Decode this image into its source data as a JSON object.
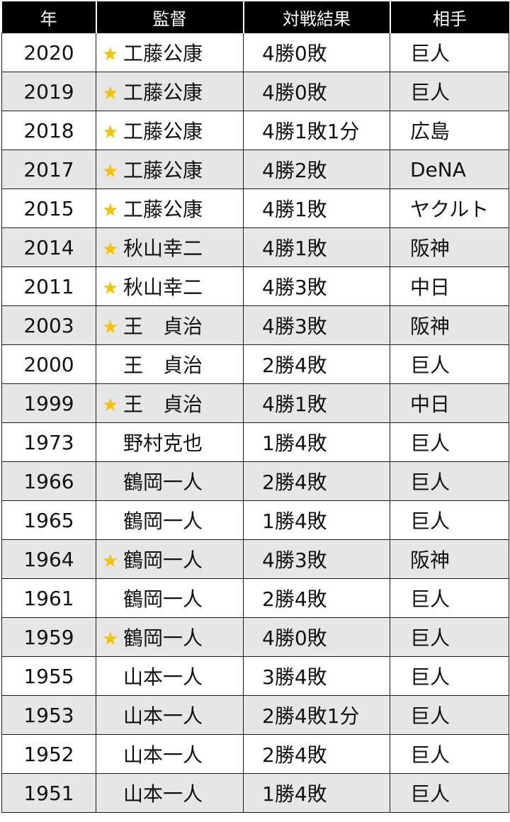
{
  "headers": {
    "year": "年",
    "manager": "監督",
    "result": "対戦結果",
    "opponent": "相手"
  },
  "colors": {
    "header_bg": "#000000",
    "alt_row_bg": "#e6e6e6",
    "star": "#f5c200"
  },
  "rows": [
    {
      "year": "2020",
      "star": "★",
      "manager": "工藤公康",
      "result": "4勝0敗",
      "opponent": "巨人"
    },
    {
      "year": "2019",
      "star": "★",
      "manager": "工藤公康",
      "result": "4勝0敗",
      "opponent": "巨人"
    },
    {
      "year": "2018",
      "star": "★",
      "manager": "工藤公康",
      "result": "4勝1敗1分",
      "opponent": "広島"
    },
    {
      "year": "2017",
      "star": "★",
      "manager": "工藤公康",
      "result": "4勝2敗",
      "opponent": "DeNA"
    },
    {
      "year": "2015",
      "star": "★",
      "manager": "工藤公康",
      "result": "4勝1敗",
      "opponent": "ヤクルト"
    },
    {
      "year": "2014",
      "star": "★",
      "manager": "秋山幸二",
      "result": "4勝1敗",
      "opponent": "阪神"
    },
    {
      "year": "2011",
      "star": "★",
      "manager": "秋山幸二",
      "result": "4勝3敗",
      "opponent": "中日"
    },
    {
      "year": "2003",
      "star": "★",
      "manager": "王　貞治",
      "result": "4勝3敗",
      "opponent": "阪神"
    },
    {
      "year": "2000",
      "star": "",
      "manager": "王　貞治",
      "result": "2勝4敗",
      "opponent": "巨人"
    },
    {
      "year": "1999",
      "star": "★",
      "manager": "王　貞治",
      "result": "4勝1敗",
      "opponent": "中日"
    },
    {
      "year": "1973",
      "star": "",
      "manager": "野村克也",
      "result": "1勝4敗",
      "opponent": "巨人"
    },
    {
      "year": "1966",
      "star": "",
      "manager": "鶴岡一人",
      "result": "2勝4敗",
      "opponent": "巨人"
    },
    {
      "year": "1965",
      "star": "",
      "manager": "鶴岡一人",
      "result": "1勝4敗",
      "opponent": "巨人"
    },
    {
      "year": "1964",
      "star": "★",
      "manager": "鶴岡一人",
      "result": "4勝3敗",
      "opponent": "阪神"
    },
    {
      "year": "1961",
      "star": "",
      "manager": "鶴岡一人",
      "result": "2勝4敗",
      "opponent": "巨人"
    },
    {
      "year": "1959",
      "star": "★",
      "manager": "鶴岡一人",
      "result": "4勝0敗",
      "opponent": "巨人"
    },
    {
      "year": "1955",
      "star": "",
      "manager": "山本一人",
      "result": "3勝4敗",
      "opponent": "巨人"
    },
    {
      "year": "1953",
      "star": "",
      "manager": "山本一人",
      "result": "2勝4敗1分",
      "opponent": "巨人"
    },
    {
      "year": "1952",
      "star": "",
      "manager": "山本一人",
      "result": "2勝4敗",
      "opponent": "巨人"
    },
    {
      "year": "1951",
      "star": "",
      "manager": "山本一人",
      "result": "1勝4敗",
      "opponent": "巨人"
    }
  ]
}
